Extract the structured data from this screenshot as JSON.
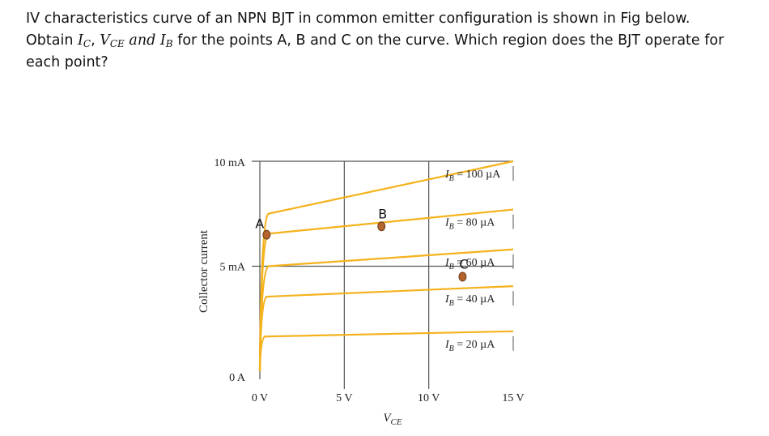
{
  "question": {
    "line1": "IV characteristics curve of an NPN BJT in common emitter configuration is shown in Fig below.",
    "line2_pre": "Obtain ",
    "sym_ic": "I",
    "sub_ic": "C",
    "comma1": ", ",
    "sym_vce": "V",
    "sub_vce": "CE",
    "and_word": " and ",
    "sym_ib": "I",
    "sub_ib": "B",
    "line2_post": " for the points A, B and C on the curve. Which region does the BJT operate for",
    "line3": "each point?"
  },
  "chart_data": {
    "type": "line",
    "xlabel_main": "V",
    "xlabel_sub": "CE",
    "ylabel": "Collector current",
    "x_ticks": [
      {
        "v": 0,
        "label": "0 V"
      },
      {
        "v": 5,
        "label": "5 V"
      },
      {
        "v": 10,
        "label": "10 V"
      },
      {
        "v": 15,
        "label": "15 V"
      }
    ],
    "y_ticks": [
      {
        "v": 0,
        "label": "0 A"
      },
      {
        "v": 5,
        "label": "5 mA"
      },
      {
        "v": 10,
        "label": "10 mA"
      }
    ],
    "xlim": [
      0,
      15
    ],
    "ylim": [
      0,
      10
    ],
    "grid": true,
    "series": [
      {
        "name": "IB = 100 µA",
        "sub": "B",
        "value_label": " = 100 µA",
        "knee_v": 0.5,
        "y_knee": 7.5,
        "y_end": 10.0
      },
      {
        "name": "IB = 80 µA",
        "sub": "B",
        "value_label": " = 80 µA",
        "knee_v": 0.5,
        "y_knee": 6.55,
        "y_end": 7.7
      },
      {
        "name": "IB = 60 µA",
        "sub": "B",
        "value_label": " = 60 µA",
        "knee_v": 0.5,
        "y_knee": 5.0,
        "y_end": 5.8
      },
      {
        "name": "IB = 40 µA",
        "sub": "B",
        "value_label": " = 40 µA",
        "knee_v": 0.4,
        "y_knee": 3.55,
        "y_end": 4.05
      },
      {
        "name": "IB = 20 µA",
        "sub": "B",
        "value_label": " = 20 µA",
        "knee_v": 0.3,
        "y_knee": 1.65,
        "y_end": 1.9
      }
    ],
    "points": [
      {
        "label": "A",
        "x": 0.4,
        "y": 6.5
      },
      {
        "label": "B",
        "x": 7.2,
        "y": 6.9
      },
      {
        "label": "C",
        "x": 12.0,
        "y": 4.5
      }
    ],
    "colors": {
      "curve": "#f5b21c",
      "grid": "#555555",
      "point": "#b5642e",
      "point_edge": "#6b3a15"
    }
  }
}
